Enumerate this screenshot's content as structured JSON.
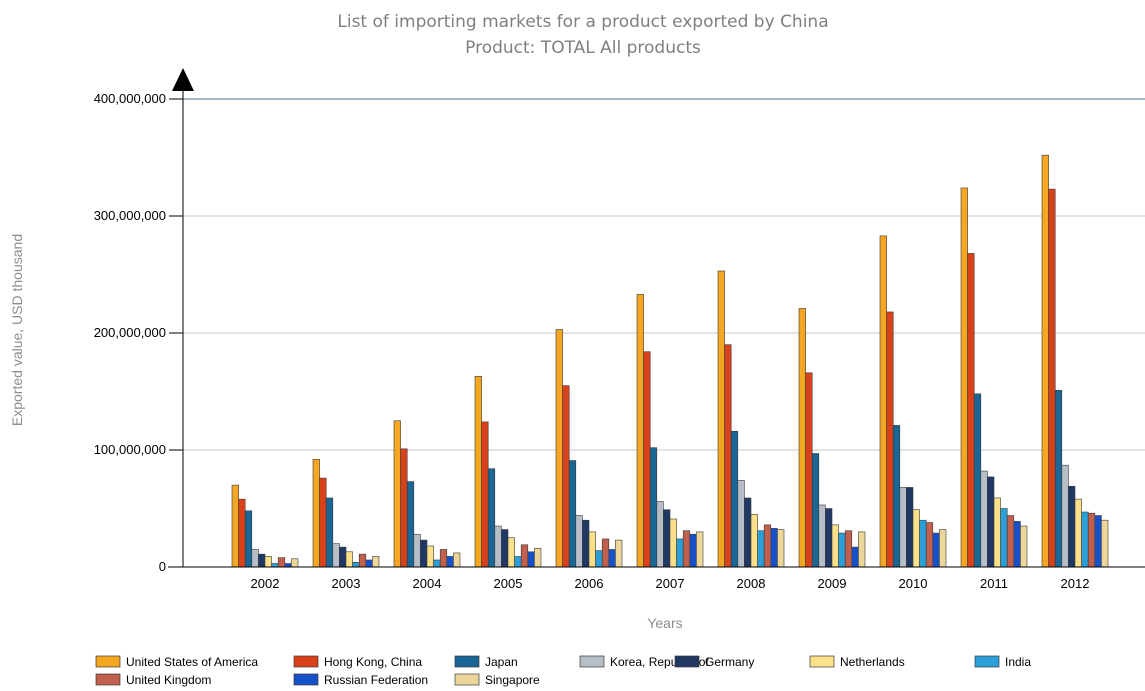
{
  "chart_data": {
    "type": "bar",
    "title": "List of importing markets for a product exported by China",
    "subtitle": "Product: TOTAL All products",
    "xlabel": "Years",
    "ylabel": "Exported value, USD thousand",
    "ylim": [
      0,
      400000000
    ],
    "yticks": [
      0,
      100000000,
      200000000,
      300000000,
      400000000
    ],
    "ytick_labels": [
      "0",
      "100,000,000",
      "200,000,000",
      "300,000,000",
      "400,000,000"
    ],
    "grid": true,
    "legend_position": "bottom",
    "categories": [
      "2002",
      "2003",
      "2004",
      "2005",
      "2006",
      "2007",
      "2008",
      "2009",
      "2010",
      "2011",
      "2012"
    ],
    "series": [
      {
        "name": "United States of America",
        "color": "#f5a623",
        "values": [
          70000000,
          92000000,
          125000000,
          163000000,
          203000000,
          233000000,
          253000000,
          221000000,
          283000000,
          324000000,
          352000000
        ]
      },
      {
        "name": "Hong Kong, China",
        "color": "#d9411b",
        "values": [
          58000000,
          76000000,
          101000000,
          124000000,
          155000000,
          184000000,
          190000000,
          166000000,
          218000000,
          268000000,
          323000000
        ]
      },
      {
        "name": "Japan",
        "color": "#1a6796",
        "values": [
          48000000,
          59000000,
          73000000,
          84000000,
          91000000,
          102000000,
          116000000,
          97000000,
          121000000,
          148000000,
          151000000
        ]
      },
      {
        "name": "Korea, Republic of",
        "color": "#b8bec7",
        "values": [
          15000000,
          20000000,
          28000000,
          35000000,
          44000000,
          56000000,
          74000000,
          53000000,
          68000000,
          82000000,
          87000000
        ]
      },
      {
        "name": "Germany",
        "color": "#1f3864",
        "values": [
          11000000,
          17000000,
          23000000,
          32000000,
          40000000,
          49000000,
          59000000,
          50000000,
          68000000,
          77000000,
          69000000
        ]
      },
      {
        "name": "Netherlands",
        "color": "#fbe08a",
        "values": [
          9000000,
          13000000,
          18000000,
          25000000,
          30000000,
          41000000,
          45000000,
          36000000,
          49000000,
          59000000,
          58000000
        ]
      },
      {
        "name": "India",
        "color": "#2a9fd8",
        "values": [
          3000000,
          4000000,
          6000000,
          9000000,
          14000000,
          24000000,
          31000000,
          29000000,
          40000000,
          50000000,
          47000000
        ]
      },
      {
        "name": "United Kingdom",
        "color": "#c0604d",
        "values": [
          8000000,
          11000000,
          15000000,
          19000000,
          24000000,
          31000000,
          36000000,
          31000000,
          38000000,
          44000000,
          46000000
        ]
      },
      {
        "name": "Russian Federation",
        "color": "#1751c9",
        "values": [
          3000000,
          6000000,
          9000000,
          13000000,
          15000000,
          28000000,
          33000000,
          17000000,
          29000000,
          39000000,
          44000000
        ]
      },
      {
        "name": "Singapore",
        "color": "#ecd699",
        "values": [
          7000000,
          9000000,
          12000000,
          16000000,
          23000000,
          30000000,
          32000000,
          30000000,
          32000000,
          35000000,
          40000000
        ]
      }
    ]
  }
}
